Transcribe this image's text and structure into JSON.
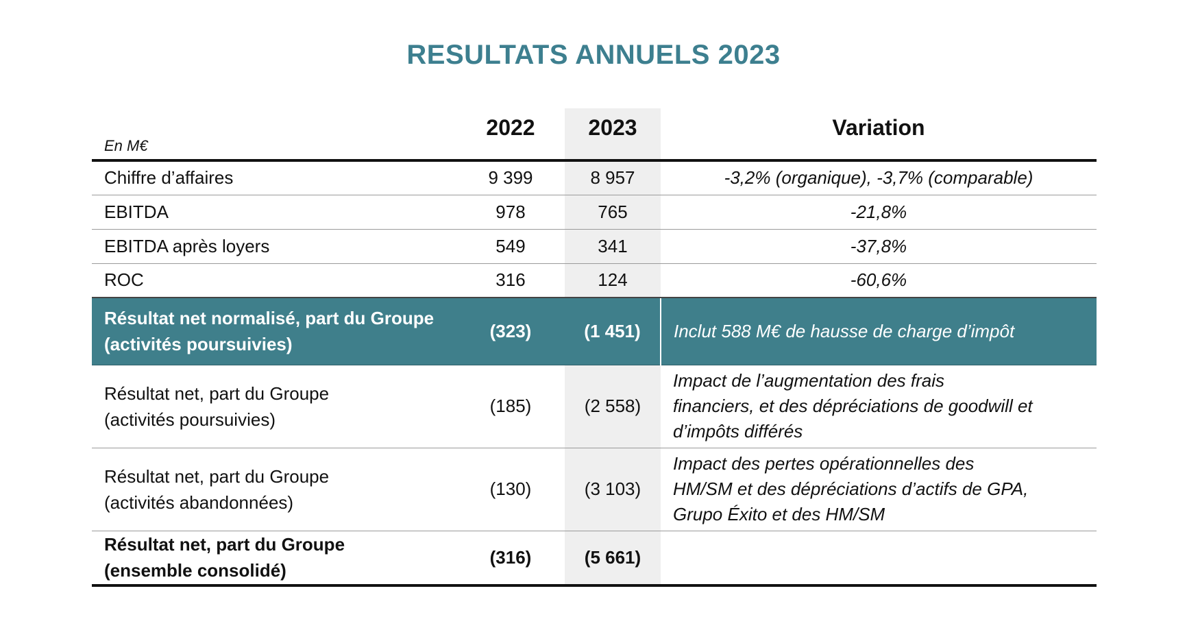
{
  "title": "RESULTATS ANNUELS 2023",
  "header": {
    "unit": "En M€",
    "col_2022": "2022",
    "col_2023": "2023",
    "col_variation": "Variation"
  },
  "rows": [
    {
      "label": "Chiffre d’affaires",
      "v2022": "9 399",
      "v2023": "8 957",
      "variation": "-3,2% (organique), -3,7% (comparable)"
    },
    {
      "label": "EBITDA",
      "v2022": "978",
      "v2023": "765",
      "variation": "-21,8%"
    },
    {
      "label": "EBITDA après loyers",
      "v2022": "549",
      "v2023": "341",
      "variation": "-37,8%"
    },
    {
      "label": "ROC",
      "v2022": "316",
      "v2023": "124",
      "variation": "-60,6%"
    },
    {
      "label_line1": "Résultat net normalisé, part du Groupe",
      "label_line2": "(activités poursuivies)",
      "v2022": "(323)",
      "v2023": "(1 451)",
      "variation": "Inclut 588 M€ de hausse de charge d’impôt"
    },
    {
      "label_line1": "Résultat net, part du Groupe",
      "label_line2": "(activités poursuivies)",
      "v2022": "(185)",
      "v2023": "(2 558)",
      "variation_line1": "Impact de l’augmentation des frais",
      "variation_line2": "financiers, et des dépréciations de goodwill et",
      "variation_line3": "d’impôts différés"
    },
    {
      "label_line1": "Résultat net, part du Groupe",
      "label_line2": "(activités abandonnées)",
      "v2022": "(130)",
      "v2023": "(3 103)",
      "variation_line1": "Impact des pertes opérationnelles des",
      "variation_line2": "HM/SM et des dépréciations d’actifs de GPA,",
      "variation_line3": "Grupo Éxito et des HM/SM"
    },
    {
      "label_line1": "Résultat net, part du Groupe",
      "label_line2": "(ensemble consolidé)",
      "v2022": "(316)",
      "v2023": "(5 661)",
      "variation": ""
    }
  ],
  "colors": {
    "title": "#3d7f8f",
    "highlight_row": "#3f7f8b",
    "shaded_column": "#efefef"
  }
}
